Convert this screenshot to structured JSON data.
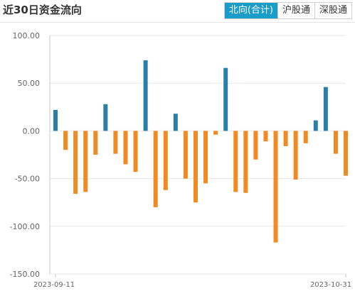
{
  "header": {
    "title": "近30日资金流向",
    "tabs": [
      {
        "label": "北向(合计)",
        "active": true
      },
      {
        "label": "沪股通",
        "active": false
      },
      {
        "label": "深股通",
        "active": false
      }
    ]
  },
  "colors": {
    "positive": "#2a7fa6",
    "negative": "#f08a22",
    "accent": "#1a9ec9"
  },
  "chart_data": {
    "type": "bar",
    "title": "",
    "xlabel": "",
    "ylabel": "",
    "ylim": [
      -150,
      100
    ],
    "yticks": [
      100,
      50,
      0,
      -50,
      -100,
      -150
    ],
    "ytick_labels": [
      "100.00",
      "50.00",
      "0.00",
      "-50.00",
      "-100.00",
      "-150.00"
    ],
    "x_start_label": "2023-09-11",
    "x_end_label": "2023-10-31",
    "values": [
      22,
      -20,
      -66,
      -64,
      -25,
      28,
      -24,
      -35,
      -43,
      74,
      -80,
      -62,
      18,
      -50,
      -75,
      -55,
      -4,
      66,
      -64,
      -65,
      -30,
      -11,
      -117,
      -16,
      -51,
      -13,
      11,
      46,
      -24,
      -47
    ]
  }
}
